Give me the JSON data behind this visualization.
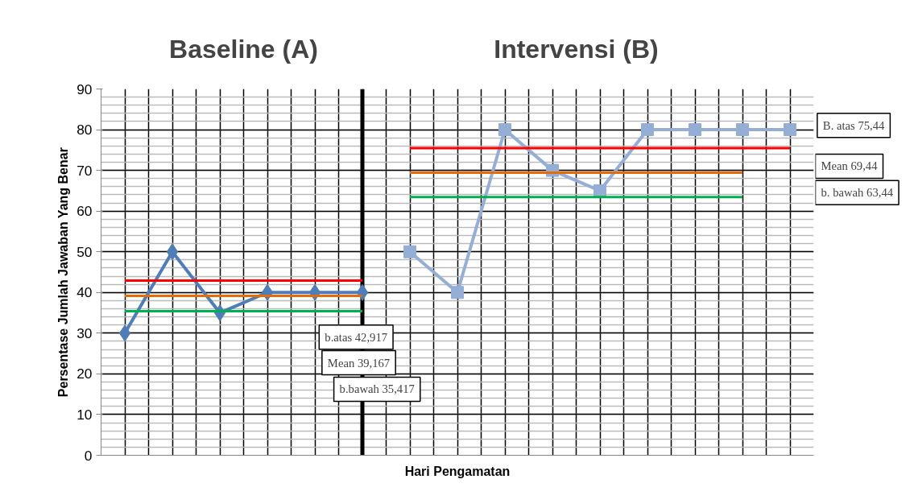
{
  "chart_data": {
    "type": "line",
    "xlabel": "Hari Pengamatan",
    "ylabel": "Persentase Jumlah Jawaban Yang Benar",
    "annotations": [
      "Baseline (A)",
      "Intervensi (B)",
      "b.atas 42,917",
      "Mean 39,167",
      "b.bawah 35,417",
      "B. atas 75,44",
      "Mean 69,44",
      "b. bawah 63,44"
    ],
    "categories": [
      null,
      null,
      null,
      null,
      null,
      null,
      null,
      null,
      null,
      null,
      null,
      null,
      null,
      null,
      null
    ],
    "ylim": [
      0,
      90
    ],
    "yticks": [
      0,
      10,
      20,
      30,
      40,
      50,
      60,
      70,
      80,
      90
    ],
    "grid": true,
    "line_style": "solid",
    "series": [
      {
        "color": "#4f7db8",
        "marker": "diamond",
        "values": [
          30,
          50,
          35,
          40,
          40,
          40,
          null,
          null,
          null,
          null,
          null,
          null,
          null,
          null,
          null
        ]
      },
      {
        "color": "#95aed6",
        "marker": "square",
        "values": [
          null,
          null,
          null,
          null,
          null,
          null,
          50,
          40,
          80,
          70,
          65,
          80,
          80,
          80,
          80
        ]
      },
      {
        "color": "#ff0000",
        "marker": "none",
        "values": [
          42.917,
          42.917,
          42.917,
          42.917,
          42.917,
          42.917,
          null,
          null,
          null,
          null,
          null,
          null,
          null,
          null,
          null
        ]
      },
      {
        "color": "#e46c0a",
        "marker": "none",
        "values": [
          39.167,
          39.167,
          39.167,
          39.167,
          39.167,
          39.167,
          null,
          null,
          null,
          null,
          null,
          null,
          null,
          null,
          null
        ]
      },
      {
        "color": "#00b050",
        "marker": "none",
        "values": [
          35.417,
          35.417,
          35.417,
          35.417,
          35.417,
          35.417,
          null,
          null,
          null,
          null,
          null,
          null,
          null,
          null,
          null
        ]
      },
      {
        "color": "#ff0000",
        "marker": "none",
        "values": [
          null,
          null,
          null,
          null,
          null,
          null,
          75.44,
          75.44,
          75.44,
          75.44,
          75.44,
          75.44,
          75.44,
          75.44,
          75.44
        ]
      },
      {
        "color": "#e46c0a",
        "marker": "none",
        "values": [
          null,
          null,
          null,
          null,
          null,
          null,
          69.44,
          69.44,
          69.44,
          69.44,
          69.44,
          69.44,
          69.44,
          69.44,
          null
        ]
      },
      {
        "color": "#00b050",
        "marker": "none",
        "values": [
          null,
          null,
          null,
          null,
          null,
          null,
          63.44,
          63.44,
          63.44,
          63.44,
          63.44,
          63.44,
          63.44,
          63.44,
          null
        ]
      }
    ]
  }
}
